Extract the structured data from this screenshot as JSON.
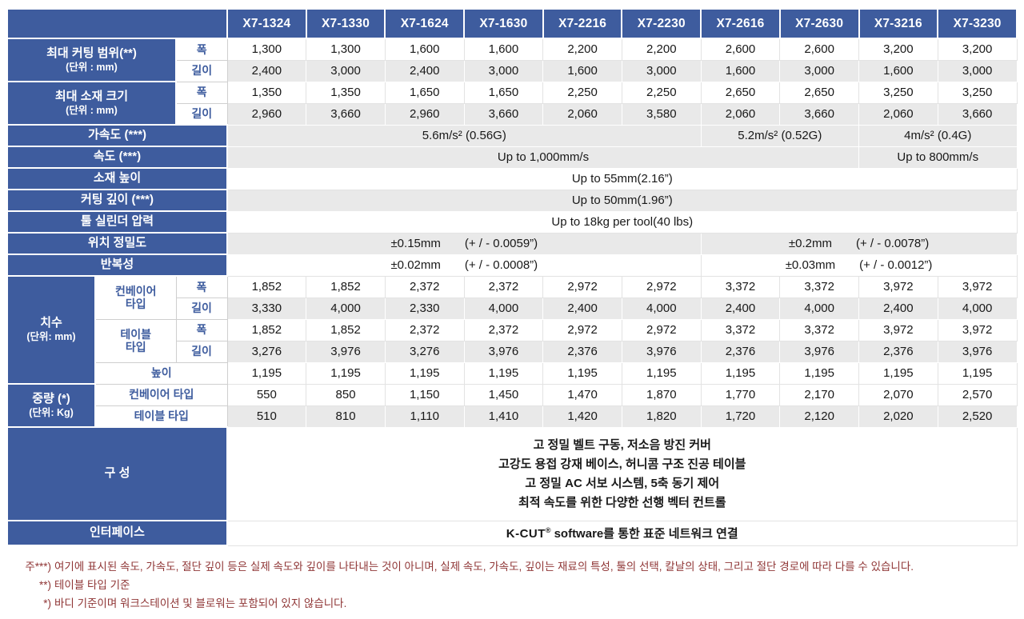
{
  "colors": {
    "header_blue": "#3e5c9e",
    "row_stripe_gray": "#e9e9e9",
    "note_red": "#8f3535"
  },
  "models": [
    "X7-1324",
    "X7-1330",
    "X7-1624",
    "X7-1630",
    "X7-2216",
    "X7-2230",
    "X7-2616",
    "X7-2630",
    "X7-3216",
    "X7-3230"
  ],
  "labels": {
    "cutting_range": "최대 커팅 범위(**)",
    "cutting_range_unit": "(단위 : mm)",
    "material_size": "최대 소재 크기",
    "material_size_unit": "(단위 : mm)",
    "width": "폭",
    "length": "길이",
    "acceleration": "가속도 (***)",
    "speed": "속도 (***)",
    "material_height": "소재 높이",
    "cutting_depth": "커팅 깊이 (***)",
    "tool_cylinder": "툴 실린더 압력",
    "position_accuracy": "위치 정밀도",
    "repeatability": "반복성",
    "dimensions": "치수",
    "dimensions_unit": "(단위: mm)",
    "conveyor_type_2l": "컨베이어\n타입",
    "table_type_2l": "테이블\n타입",
    "conveyor_type": "컨베이어 타입",
    "table_type": "테이블 타입",
    "height": "높이",
    "weight": "중량 (*)",
    "weight_unit": "(단위: Kg)",
    "composition": "구 성",
    "interface": "인터페이스"
  },
  "specs": {
    "cutting_width": [
      "1,300",
      "1,300",
      "1,600",
      "1,600",
      "2,200",
      "2,200",
      "2,600",
      "2,600",
      "3,200",
      "3,200"
    ],
    "cutting_length": [
      "2,400",
      "3,000",
      "2,400",
      "3,000",
      "1,600",
      "3,000",
      "1,600",
      "3,000",
      "1,600",
      "3,000"
    ],
    "material_width": [
      "1,350",
      "1,350",
      "1,650",
      "1,650",
      "2,250",
      "2,250",
      "2,650",
      "2,650",
      "3,250",
      "3,250"
    ],
    "material_length": [
      "2,960",
      "3,660",
      "2,960",
      "3,660",
      "2,060",
      "3,580",
      "2,060",
      "3,660",
      "2,060",
      "3,660"
    ],
    "acceleration": [
      "5.6m/s² (0.56G)",
      "5.2m/s² (0.52G)",
      "4m/s² (0.4G)"
    ],
    "speed": [
      "Up to 1,000mm/s",
      "Up to 800mm/s"
    ],
    "material_height": "Up to 55mm(2.16”)",
    "cutting_depth": "Up to 50mm(1.96”)",
    "tool_cylinder": "Up to 18kg per tool(40 lbs)",
    "position_accuracy_mm": [
      "±0.15mm",
      "±0.2mm"
    ],
    "position_accuracy_inch": [
      "(+ / - 0.0059”)",
      "(+ / - 0.0078”)"
    ],
    "repeatability_mm": [
      "±0.02mm",
      "±0.03mm"
    ],
    "repeatability_inch": [
      "(+ / - 0.0008”)",
      "(+ / - 0.0012”)"
    ],
    "conveyor_width": [
      "1,852",
      "1,852",
      "2,372",
      "2,372",
      "2,972",
      "2,972",
      "3,372",
      "3,372",
      "3,972",
      "3,972"
    ],
    "conveyor_length": [
      "3,330",
      "4,000",
      "2,330",
      "4,000",
      "2,400",
      "4,000",
      "2,400",
      "4,000",
      "2,400",
      "4,000"
    ],
    "table_width": [
      "1,852",
      "1,852",
      "2,372",
      "2,372",
      "2,972",
      "2,972",
      "3,372",
      "3,372",
      "3,972",
      "3,972"
    ],
    "table_length": [
      "3,276",
      "3,976",
      "3,276",
      "3,976",
      "2,376",
      "3,976",
      "2,376",
      "3,976",
      "2,376",
      "3,976"
    ],
    "height_row": [
      "1,195",
      "1,195",
      "1,195",
      "1,195",
      "1,195",
      "1,195",
      "1,195",
      "1,195",
      "1,195",
      "1,195"
    ],
    "weight_conveyor": [
      "550",
      "850",
      "1,150",
      "1,450",
      "1,470",
      "1,870",
      "1,770",
      "2,170",
      "2,070",
      "2,570"
    ],
    "weight_table": [
      "510",
      "810",
      "1,110",
      "1,410",
      "1,420",
      "1,820",
      "1,720",
      "2,120",
      "2,020",
      "2,520"
    ],
    "composition_lines": [
      "고 정밀 벨트 구동, 저소음 방진 커버",
      "고강도 용접 강재 베이스, 허니콤 구조 진공 테이블",
      "고 정밀 AC 서보 시스템, 5축 동기 제어",
      "최적 속도를 위한 다양한 선행 벡터 컨트롤"
    ],
    "interface_brand": "K-CUT",
    "interface_reg": "®",
    "interface_rest": "software를 통한 표준 네트워크 연결"
  },
  "notes": [
    {
      "marker": "주***)",
      "text": "여기에 표시된 속도, 가속도, 절단 깊이 등은 실제 속도와 깊이를 나타내는 것이 아니며, 실제 속도, 가속도, 깊이는 재료의 특성, 툴의 선택, 칼날의 상태, 그리고 절단 경로에 따라 다를 수 있습니다."
    },
    {
      "marker": "**)",
      "text": "테이블 타입 기준"
    },
    {
      "marker": "*)",
      "text": "바디 기준이며 워크스테이션 및 블로워는 포함되어 있지 않습니다."
    }
  ]
}
